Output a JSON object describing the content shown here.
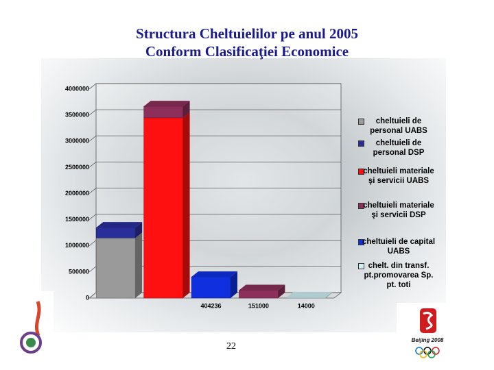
{
  "chart_data": {
    "type": "bar",
    "stacked": true,
    "title": "Structura Cheltuielilor  pe anul 2005",
    "subtitle": "Conform Clasificaţiei Economice",
    "categories": [
      null,
      null,
      "404236",
      "151000",
      "14000"
    ],
    "series": [
      {
        "name": "cheltuieli de personal UABS",
        "color": "#9a9a9a",
        "values": [
          1150000,
          null,
          null,
          null,
          null
        ]
      },
      {
        "name": "cheltuieli de personal DSP",
        "color": "#2a2e9a",
        "values": [
          200000,
          null,
          null,
          null,
          null
        ]
      },
      {
        "name": "cheltuieli materiale şi servicii UABS",
        "color": "#ff1010",
        "values": [
          null,
          3450000,
          null,
          null,
          null
        ]
      },
      {
        "name": "cheltuieli materiale şi servicii DSP",
        "color": "#8c2f5a",
        "values": [
          null,
          220000,
          null,
          151000,
          null
        ]
      },
      {
        "name": "cheltuieli de capital UABS",
        "color": "#1030e0",
        "values": [
          null,
          null,
          404236,
          null,
          null
        ]
      },
      {
        "name": "chelt. din transf. pt.promovarea Sp. pt. toti",
        "color": "#cfeff4",
        "values": [
          null,
          null,
          null,
          null,
          14000
        ]
      }
    ],
    "ylim": [
      0,
      4000000
    ],
    "yticks": [
      0,
      500000,
      1000000,
      1500000,
      2000000,
      2500000,
      3000000,
      3500000,
      4000000
    ],
    "grid": true,
    "legend": "right"
  },
  "slide": {
    "page_number": "22"
  }
}
